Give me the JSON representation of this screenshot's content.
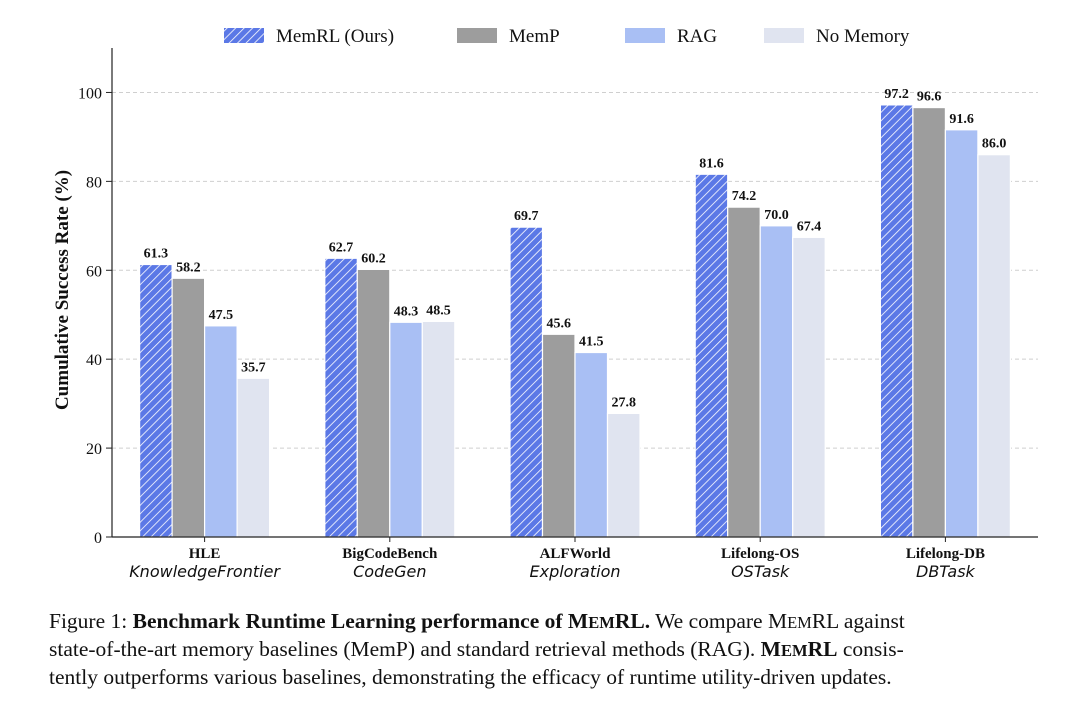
{
  "chart_data": {
    "type": "bar",
    "ylabel": "Cumulative Success Rate (%)",
    "ylim": [
      0,
      110
    ],
    "yticks": [
      0,
      20,
      40,
      60,
      80,
      100
    ],
    "grid": true,
    "legend_position": "top",
    "categories": [
      {
        "name": "HLE",
        "subtitle": "KnowledgeFrontier"
      },
      {
        "name": "BigCodeBench",
        "subtitle": "CodeGen"
      },
      {
        "name": "ALFWorld",
        "subtitle": "Exploration"
      },
      {
        "name": "Lifelong-OS",
        "subtitle": "OSTask"
      },
      {
        "name": "Lifelong-DB",
        "subtitle": "DBTask"
      }
    ],
    "series": [
      {
        "name": "MemRL (Ours)",
        "color": "#5b78e6",
        "hatch": true,
        "values": [
          61.3,
          62.7,
          69.7,
          81.6,
          97.2
        ]
      },
      {
        "name": "MemP",
        "color": "#9d9d9d",
        "hatch": false,
        "values": [
          58.2,
          60.2,
          45.6,
          74.2,
          96.6
        ]
      },
      {
        "name": "RAG",
        "color": "#a9bff4",
        "hatch": false,
        "values": [
          47.5,
          48.3,
          41.5,
          70.0,
          91.6
        ]
      },
      {
        "name": "No Memory",
        "color": "#e0e4f0",
        "hatch": false,
        "values": [
          35.7,
          48.5,
          27.8,
          67.4,
          86.0
        ]
      }
    ]
  },
  "caption": {
    "label": "Figure 1:",
    "title_pre": "Benchmark Runtime Learning performance of M",
    "title_sc": "EM",
    "title_post": "RL.",
    "s1_pre": "We compare M",
    "s1_sc": "EM",
    "s1_post": "RL against",
    "line2": "state-of-the-art memory baselines (MemP) and standard retrieval methods (RAG).",
    "s2_pre": "M",
    "s2_sc": "EM",
    "s2_post": "RL",
    "s2_tail": "consis-",
    "line3": "tently outperforms various baselines, demonstrating the efficacy of runtime utility-driven updates."
  }
}
